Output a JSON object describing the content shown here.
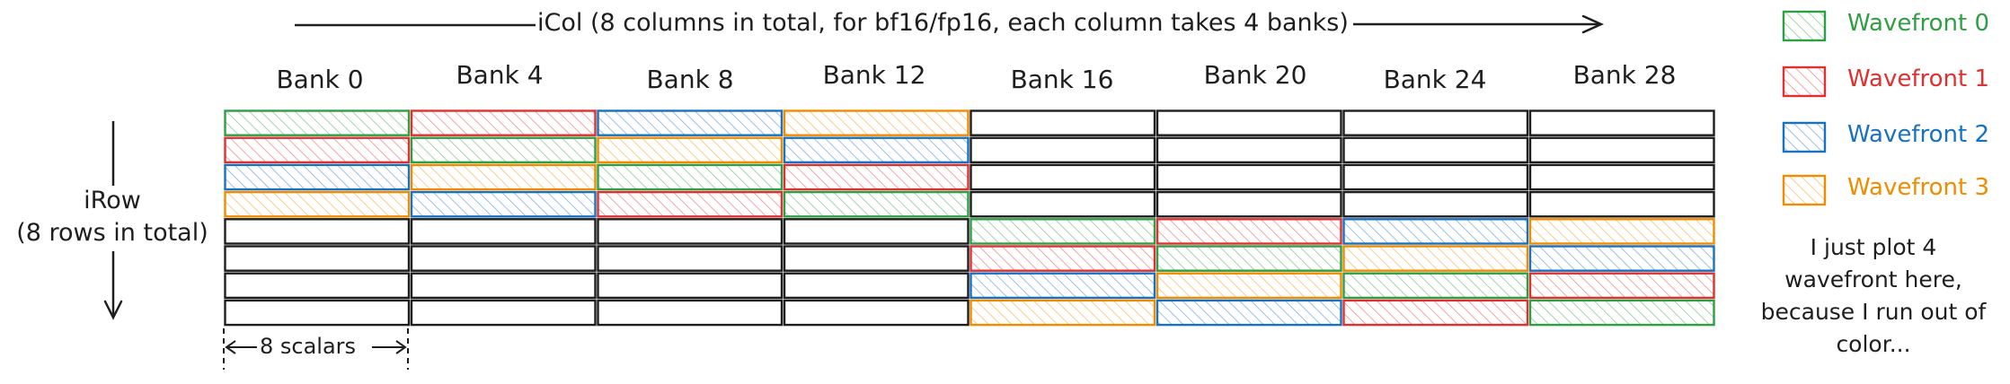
{
  "title_label": "iCol (8 columns in total, for bf16/fp16, each column takes 4 banks)",
  "row_label_line1": "iRow",
  "row_label_line2": "(8 rows in total)",
  "scalars_label": "8 scalars",
  "bank_headers": [
    "Bank 0",
    "Bank 4",
    "Bank 8",
    "Bank 12",
    "Bank 16",
    "Bank 20",
    "Bank 24",
    "Bank 28"
  ],
  "legend": [
    {
      "label": "Wavefront 0",
      "color": "#2f9e44"
    },
    {
      "label": "Wavefront 1",
      "color": "#e03131"
    },
    {
      "label": "Wavefront 2",
      "color": "#1971c2"
    },
    {
      "label": "Wavefront 3",
      "color": "#f08c00"
    }
  ],
  "note_text": "I just plot 4 wavefront here, because I run out of color...",
  "grid": [
    [
      0,
      1,
      2,
      3,
      null,
      null,
      null,
      null
    ],
    [
      1,
      0,
      3,
      2,
      null,
      null,
      null,
      null
    ],
    [
      2,
      3,
      0,
      1,
      null,
      null,
      null,
      null
    ],
    [
      3,
      2,
      1,
      0,
      null,
      null,
      null,
      null
    ],
    [
      null,
      null,
      null,
      null,
      0,
      1,
      2,
      3
    ],
    [
      null,
      null,
      null,
      null,
      1,
      0,
      3,
      2
    ],
    [
      null,
      null,
      null,
      null,
      2,
      3,
      0,
      1
    ],
    [
      null,
      null,
      null,
      null,
      3,
      2,
      1,
      0
    ]
  ]
}
